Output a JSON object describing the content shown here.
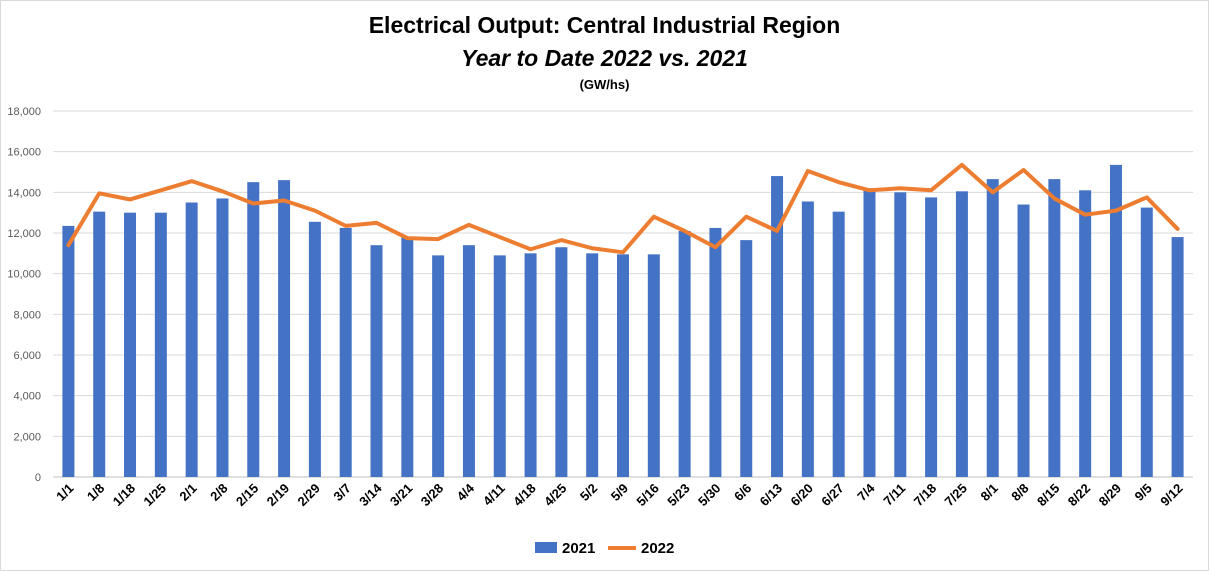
{
  "chart_data": {
    "type": "bar",
    "title": "Electrical Output:  Central Industrial Region",
    "subtitle": "Year to Date 2022 vs. 2021",
    "unit_label": "(GW/hs)",
    "categories": [
      "1/1",
      "1/8",
      "1/18",
      "1/25",
      "2/1",
      "2/8",
      "2/15",
      "2/19",
      "2/29",
      "3/7",
      "3/14",
      "3/21",
      "3/28",
      "4/4",
      "4/11",
      "4/18",
      "4/25",
      "5/2",
      "5/9",
      "5/16",
      "5/23",
      "5/30",
      "6/6",
      "6/13",
      "6/20",
      "6/27",
      "7/4",
      "7/11",
      "7/18",
      "7/25",
      "8/1",
      "8/8",
      "8/15",
      "8/22",
      "8/29",
      "9/5",
      "9/12"
    ],
    "y_ticks": [
      "0",
      "2,000",
      "4,000",
      "6,000",
      "8,000",
      "10,000",
      "12,000",
      "14,000",
      "16,000",
      "18,000"
    ],
    "ylim": [
      0,
      18000
    ],
    "grid": true,
    "legend_position": "bottom",
    "series": [
      {
        "name": "2021",
        "type": "bar",
        "color": "#4472c4",
        "values": [
          12350,
          13050,
          13000,
          13000,
          13500,
          13700,
          14500,
          14600,
          12550,
          12250,
          11400,
          11800,
          10900,
          11400,
          10900,
          11000,
          11300,
          11000,
          10950,
          10950,
          12100,
          12250,
          11650,
          14800,
          13550,
          13050,
          14200,
          14000,
          13750,
          14050,
          14650,
          13400,
          14650,
          14100,
          15350,
          13250,
          11800
        ]
      },
      {
        "name": "2022",
        "type": "line",
        "color": "#ed7d31",
        "values": [
          11400,
          13950,
          13650,
          14100,
          14550,
          14050,
          13450,
          13600,
          13100,
          12350,
          12500,
          11750,
          11700,
          12400,
          11800,
          11200,
          11650,
          11250,
          11050,
          12800,
          12100,
          11300,
          12800,
          12100,
          15050,
          14500,
          14100,
          14200,
          14100,
          15350,
          14000,
          15100,
          13700,
          12900,
          13100,
          13750,
          12200
        ]
      }
    ]
  }
}
